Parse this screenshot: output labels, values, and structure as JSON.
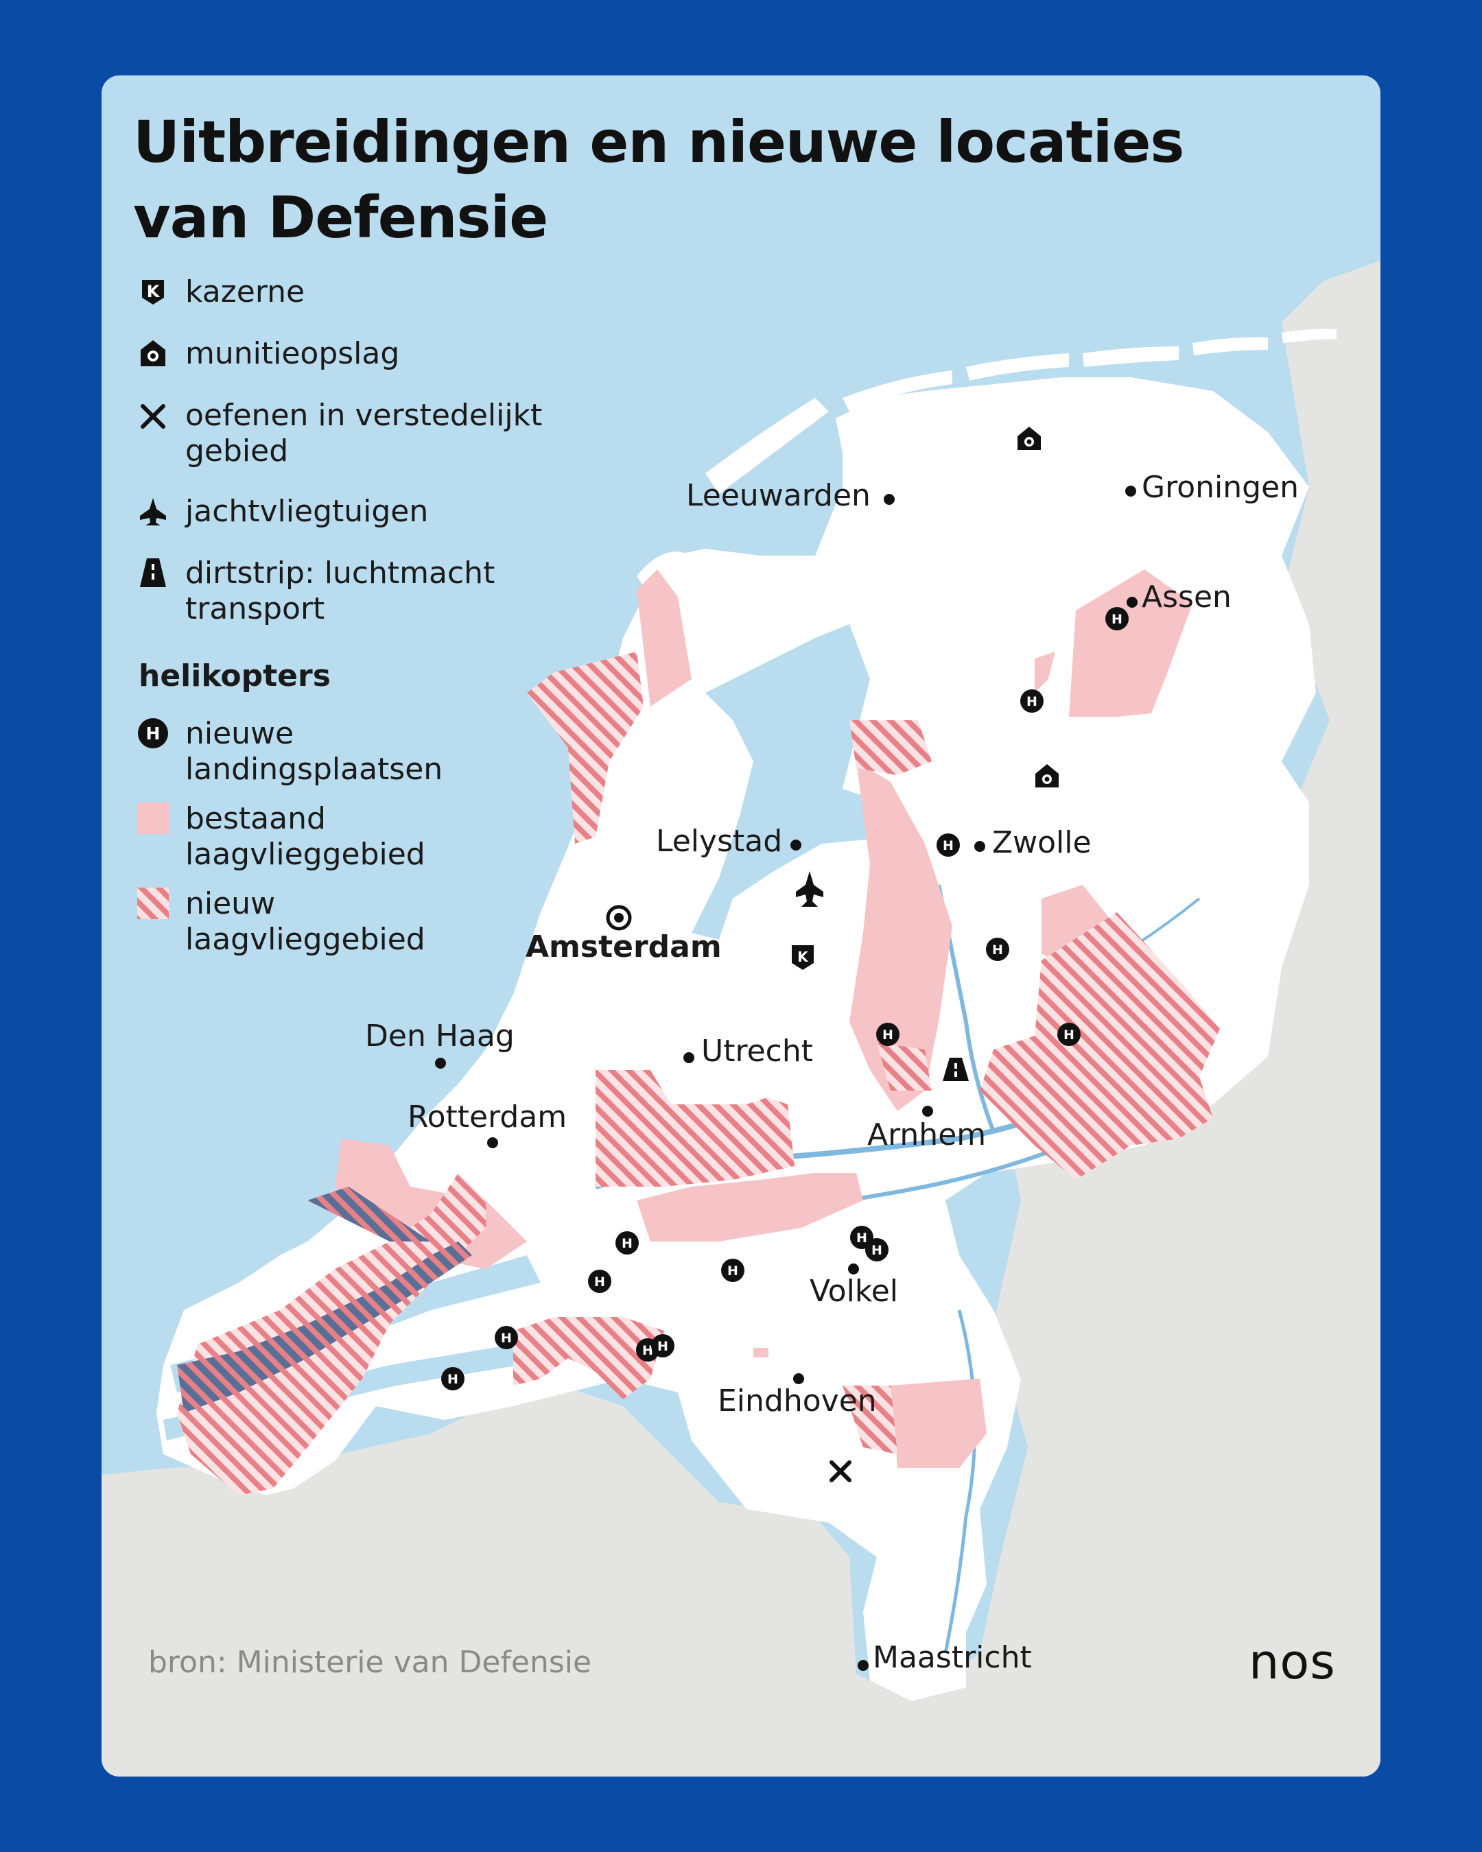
{
  "title": {
    "line1": "Uitbreidingen en nieuwe locaties",
    "line2": "van Defensie"
  },
  "legend": {
    "items": [
      {
        "icon": "barracks-icon",
        "label": "kazerne"
      },
      {
        "icon": "ammunition-storage-icon",
        "label": "munitieopslag"
      },
      {
        "icon": "cross-icon",
        "label_line1": "oefenen in verstedelijkt",
        "label_line2": "gebied"
      },
      {
        "icon": "fighter-jet-icon",
        "label": "jachtvliegtuigen"
      },
      {
        "icon": "dirtstrip-icon",
        "label_line1": "dirtstrip: luchtmacht",
        "label_line2": "transport"
      }
    ],
    "helicopters_heading": "helikopters",
    "helicopter_items": [
      {
        "icon": "helicopter-landing-icon",
        "label_line1": "nieuwe",
        "label_line2": "landingsplaatsen"
      },
      {
        "icon": "existing-area-swatch",
        "label_line1": "bestaand",
        "label_line2": "laagvlieggebied"
      },
      {
        "icon": "new-area-swatch",
        "label_line1": "nieuw",
        "label_line2": "laagvlieggebied"
      }
    ]
  },
  "cities": {
    "leeuwarden": "Leeuwarden",
    "groningen": "Groningen",
    "assen": "Assen",
    "lelystad": "Lelystad",
    "zwolle": "Zwolle",
    "amsterdam": "Amsterdam",
    "den_haag": "Den Haag",
    "utrecht": "Utrecht",
    "rotterdam": "Rotterdam",
    "arnhem": "Arnhem",
    "volkel": "Volkel",
    "eindhoven": "Eindhoven",
    "maastricht": "Maastricht"
  },
  "source": "bron: Ministerie van Defensie",
  "logo": "nos",
  "colors": {
    "background": "#0a4ba6",
    "sea": "#b9dcef",
    "land": "#ffffff",
    "foreign_land": "#e4e4e2",
    "existing_area": "#f6c3c6",
    "new_area_hatch": "#e88088",
    "water": "#7fb8df"
  }
}
